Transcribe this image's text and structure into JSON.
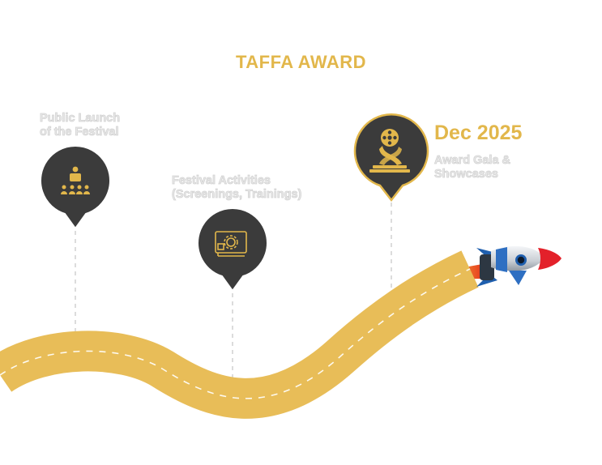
{
  "title": "TAFFA AWARD",
  "accent_color": "#e2b74b",
  "pin_color": "#3b3b3b",
  "milestones": [
    {
      "icon": "audience-speaker-icon",
      "label_lines": [
        "Public Launch",
        "of the Festival"
      ]
    },
    {
      "icon": "screen-gear-icon",
      "label_lines": [
        "Festival Activities",
        "(Screenings, Trainings)"
      ]
    },
    {
      "icon": "film-reel-trophy-icon",
      "date": "Dec 2025",
      "label_lines": [
        "Award Gala &",
        "Showcases"
      ]
    }
  ],
  "decorations": [
    "winding-road",
    "rocket-icon"
  ]
}
